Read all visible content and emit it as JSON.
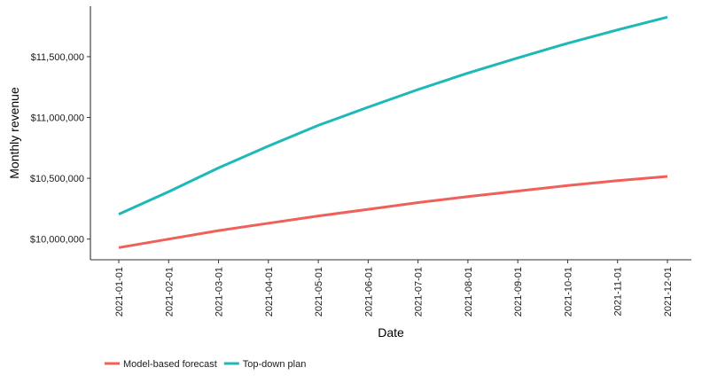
{
  "chart_data": {
    "type": "line",
    "x": [
      "2021-01-01",
      "2021-02-01",
      "2021-03-01",
      "2021-04-01",
      "2021-05-01",
      "2021-06-01",
      "2021-07-01",
      "2021-08-01",
      "2021-09-01",
      "2021-10-01",
      "2021-11-01",
      "2021-12-01"
    ],
    "series": [
      {
        "name": "Model-based forecast",
        "color": "#F0605A",
        "values": [
          9930000,
          10000000,
          10070000,
          10130000,
          10190000,
          10245000,
          10300000,
          10350000,
          10395000,
          10440000,
          10480000,
          10515000
        ]
      },
      {
        "name": "Top-down plan",
        "color": "#1DB8B8",
        "values": [
          10205000,
          10390000,
          10585000,
          10765000,
          10935000,
          11085000,
          11230000,
          11365000,
          11490000,
          11610000,
          11720000,
          11825000
        ]
      }
    ],
    "yticks": [
      10000000,
      10500000,
      11000000,
      11500000
    ],
    "ytick_labels": [
      "$10,000,000",
      "$10,500,000",
      "$11,000,000",
      "$11,500,000"
    ],
    "ylim": [
      9830000,
      11915000
    ],
    "xlabel": "Date",
    "ylabel": "Monthly revenue",
    "grid": false,
    "legend_position": "bottom-left"
  }
}
